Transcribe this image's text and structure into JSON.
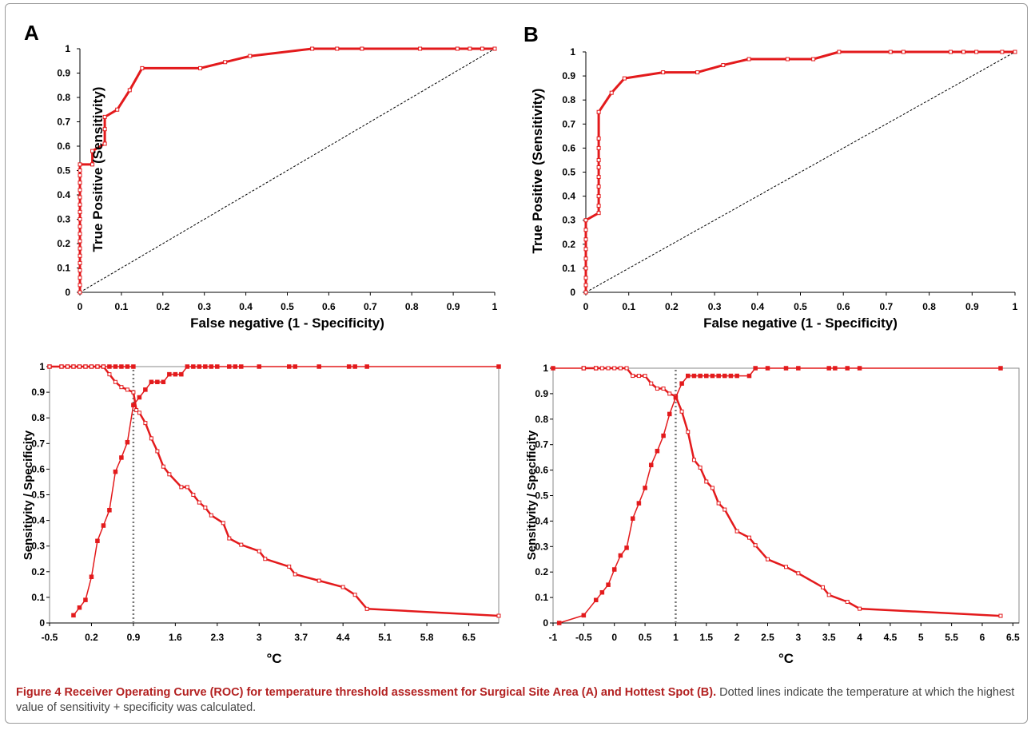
{
  "figure": {
    "caption_label": "Figure 4",
    "caption_title": "Receiver Operating Curve (ROC) for temperature threshold assessment for Surgical Site Area (A) and Hottest Spot (B).",
    "caption_text": "Dotted lines indicate the temperature at which the highest value of sensitivity + specificity was calculated."
  },
  "colors": {
    "curve": "#e31a1c",
    "text": "#000000",
    "caption_bold": "#b32121"
  },
  "chart_data": [
    {
      "id": "roc-a",
      "panel_label": "A",
      "type": "line",
      "xlabel": "False negative (1 - Specificity)",
      "ylabel": "True Positive (Sensitivity)",
      "xlim": [
        0,
        1
      ],
      "ylim": [
        0,
        1
      ],
      "xticks": [
        "0",
        "0.1",
        "0.2",
        "0.3",
        "0.4",
        "0.5",
        "0.6",
        "0.7",
        "0.8",
        "0.9",
        "1"
      ],
      "yticks": [
        "0",
        "0.1",
        "0.2",
        "0.3",
        "0.4",
        "0.5",
        "0.6",
        "0.7",
        "0.8",
        "0.9",
        "1"
      ],
      "diagonal": true,
      "series": [
        {
          "marker": "open",
          "points": [
            [
              0,
              0
            ],
            [
              0,
              0.03
            ],
            [
              0,
              0.06
            ],
            [
              0,
              0.09
            ],
            [
              0,
              0.12
            ],
            [
              0,
              0.15
            ],
            [
              0,
              0.18
            ],
            [
              0,
              0.21
            ],
            [
              0,
              0.24
            ],
            [
              0,
              0.27
            ],
            [
              0,
              0.3
            ],
            [
              0,
              0.33
            ],
            [
              0,
              0.36
            ],
            [
              0,
              0.39
            ],
            [
              0,
              0.42
            ],
            [
              0,
              0.45
            ],
            [
              0,
              0.48
            ],
            [
              0,
              0.5
            ],
            [
              0,
              0.525
            ],
            [
              0.03,
              0.525
            ],
            [
              0.03,
              0.58
            ],
            [
              0.06,
              0.61
            ],
            [
              0.06,
              0.67
            ],
            [
              0.06,
              0.72
            ],
            [
              0.09,
              0.75
            ],
            [
              0.12,
              0.83
            ],
            [
              0.15,
              0.92
            ],
            [
              0.29,
              0.92
            ],
            [
              0.35,
              0.945
            ],
            [
              0.41,
              0.97
            ],
            [
              0.56,
              1
            ],
            [
              0.62,
              1
            ],
            [
              0.68,
              1
            ],
            [
              0.82,
              1
            ],
            [
              0.91,
              1
            ],
            [
              0.94,
              1
            ],
            [
              0.97,
              1
            ],
            [
              1,
              1
            ]
          ]
        }
      ]
    },
    {
      "id": "roc-b",
      "panel_label": "B",
      "type": "line",
      "xlabel": "False negative (1 - Specificity)",
      "ylabel": "True Positive (Sensitivity)",
      "xlim": [
        0,
        1
      ],
      "ylim": [
        0,
        1
      ],
      "xticks": [
        "0",
        "0.1",
        "0.2",
        "0.3",
        "0.4",
        "0.5",
        "0.6",
        "0.7",
        "0.8",
        "0.9",
        "1"
      ],
      "yticks": [
        "0",
        "0.1",
        "0.2",
        "0.3",
        "0.4",
        "0.5",
        "0.6",
        "0.7",
        "0.8",
        "0.9",
        "1"
      ],
      "diagonal": true,
      "series": [
        {
          "marker": "open",
          "points": [
            [
              0,
              0
            ],
            [
              0,
              0.03
            ],
            [
              0,
              0.06
            ],
            [
              0,
              0.1
            ],
            [
              0,
              0.14
            ],
            [
              0,
              0.18
            ],
            [
              0,
              0.22
            ],
            [
              0,
              0.26
            ],
            [
              0,
              0.3
            ],
            [
              0.03,
              0.33
            ],
            [
              0.03,
              0.36
            ],
            [
              0.03,
              0.4
            ],
            [
              0.03,
              0.44
            ],
            [
              0.03,
              0.48
            ],
            [
              0.03,
              0.52
            ],
            [
              0.03,
              0.55
            ],
            [
              0.03,
              0.6
            ],
            [
              0.03,
              0.64
            ],
            [
              0.03,
              0.75
            ],
            [
              0.06,
              0.83
            ],
            [
              0.09,
              0.89
            ],
            [
              0.18,
              0.915
            ],
            [
              0.26,
              0.915
            ],
            [
              0.32,
              0.945
            ],
            [
              0.38,
              0.97
            ],
            [
              0.47,
              0.97
            ],
            [
              0.53,
              0.97
            ],
            [
              0.59,
              1
            ],
            [
              0.71,
              1
            ],
            [
              0.74,
              1
            ],
            [
              0.85,
              1
            ],
            [
              0.88,
              1
            ],
            [
              0.91,
              1
            ],
            [
              0.97,
              1
            ],
            [
              1,
              1
            ]
          ]
        }
      ]
    },
    {
      "id": "senspec-a",
      "type": "line",
      "xlabel": "°C",
      "ylabel": "Sensitivity / Specificity",
      "xlim": [
        -0.5,
        7.0
      ],
      "ylim": [
        0,
        1
      ],
      "xticks": [
        "-0.5",
        "0.2",
        "0.9",
        "1.6",
        "2.3",
        "3",
        "3.7",
        "4.4",
        "5.1",
        "5.8",
        "6.5"
      ],
      "xtick_values": [
        -0.5,
        0.2,
        0.9,
        1.6,
        2.3,
        3.0,
        3.7,
        4.4,
        5.1,
        5.8,
        6.5
      ],
      "yticks": [
        "0",
        "0.1",
        "0.2",
        "0.3",
        "0.4",
        "0.5",
        "0.6",
        "0.7",
        "0.8",
        "0.9",
        "1"
      ],
      "threshold": 0.9,
      "series": [
        {
          "marker": "filled",
          "points": [
            [
              -0.5,
              1
            ],
            [
              -0.3,
              1
            ],
            [
              -0.2,
              1
            ],
            [
              -0.1,
              1
            ],
            [
              0,
              1
            ],
            [
              0.1,
              1
            ],
            [
              0.2,
              1
            ],
            [
              0.3,
              1
            ],
            [
              0.4,
              1
            ],
            [
              0.5,
              1
            ],
            [
              0.6,
              1
            ],
            [
              0.7,
              1
            ],
            [
              0.8,
              1
            ],
            [
              0.9,
              1
            ]
          ]
        },
        {
          "marker": "open",
          "points": [
            [
              -0.5,
              1
            ],
            [
              -0.3,
              1
            ],
            [
              -0.2,
              1
            ],
            [
              -0.1,
              1
            ],
            [
              0,
              1
            ],
            [
              0.1,
              1
            ],
            [
              0.2,
              1
            ],
            [
              0.3,
              1
            ],
            [
              0.4,
              1
            ],
            [
              0.5,
              0.97
            ],
            [
              0.6,
              0.94
            ],
            [
              0.7,
              0.92
            ],
            [
              0.8,
              0.91
            ],
            [
              0.9,
              0.9
            ],
            [
              0.95,
              0.83
            ],
            [
              1.0,
              0.82
            ],
            [
              1.1,
              0.78
            ],
            [
              1.2,
              0.72
            ],
            [
              1.3,
              0.67
            ],
            [
              1.4,
              0.61
            ],
            [
              1.5,
              0.58
            ],
            [
              1.7,
              0.53
            ],
            [
              1.8,
              0.53
            ],
            [
              1.9,
              0.5
            ],
            [
              2.0,
              0.47
            ],
            [
              2.1,
              0.45
            ],
            [
              2.2,
              0.42
            ],
            [
              2.4,
              0.39
            ],
            [
              2.5,
              0.33
            ],
            [
              2.7,
              0.305
            ],
            [
              3.0,
              0.28
            ],
            [
              3.1,
              0.25
            ],
            [
              3.5,
              0.22
            ],
            [
              3.6,
              0.19
            ],
            [
              4.0,
              0.165
            ],
            [
              4.4,
              0.14
            ],
            [
              4.6,
              0.11
            ],
            [
              4.8,
              0.055
            ],
            [
              7.0,
              0.028
            ]
          ]
        },
        {
          "marker": "filled",
          "points": [
            [
              -0.1,
              0.03
            ],
            [
              0,
              0.06
            ],
            [
              0.1,
              0.09
            ],
            [
              0.2,
              0.18
            ],
            [
              0.3,
              0.32
            ],
            [
              0.4,
              0.38
            ],
            [
              0.5,
              0.44
            ],
            [
              0.6,
              0.59
            ],
            [
              0.7,
              0.645
            ],
            [
              0.8,
              0.705
            ],
            [
              0.9,
              0.85
            ],
            [
              1.0,
              0.88
            ],
            [
              1.1,
              0.91
            ],
            [
              1.2,
              0.94
            ],
            [
              1.3,
              0.94
            ],
            [
              1.4,
              0.94
            ],
            [
              1.5,
              0.97
            ],
            [
              1.6,
              0.97
            ],
            [
              1.7,
              0.97
            ],
            [
              1.8,
              1
            ],
            [
              1.9,
              1
            ],
            [
              2.0,
              1
            ],
            [
              2.1,
              1
            ],
            [
              2.2,
              1
            ],
            [
              2.3,
              1
            ],
            [
              2.5,
              1
            ],
            [
              2.6,
              1
            ],
            [
              2.7,
              1
            ],
            [
              3.0,
              1
            ],
            [
              3.5,
              1
            ],
            [
              3.6,
              1
            ],
            [
              4.0,
              1
            ],
            [
              4.5,
              1
            ],
            [
              4.6,
              1
            ],
            [
              4.8,
              1
            ],
            [
              7.0,
              1
            ]
          ]
        }
      ]
    },
    {
      "id": "senspec-b",
      "type": "line",
      "xlabel": "°C",
      "ylabel": "Sensitivity / Specificity",
      "xlim": [
        -1.0,
        6.6
      ],
      "ylim": [
        0,
        1
      ],
      "xticks": [
        "-1",
        "-0.5",
        "0",
        "0.5",
        "1",
        "1.5",
        "2",
        "2.5",
        "3",
        "3.5",
        "4",
        "4.5",
        "5",
        "5.5",
        "6",
        "6.5"
      ],
      "xtick_values": [
        -1,
        -0.5,
        0,
        0.5,
        1,
        1.5,
        2,
        2.5,
        3,
        3.5,
        4,
        4.5,
        5,
        5.5,
        6,
        6.5
      ],
      "yticks": [
        "0",
        "0.1",
        "0.2",
        "0.3",
        "0.4",
        "0.5",
        "0.6",
        "0.7",
        "0.8",
        "0.9",
        "1"
      ],
      "threshold": 1.0,
      "series": [
        {
          "marker": "filled",
          "points": [
            [
              -1.0,
              1
            ],
            [
              -0.5,
              1
            ],
            [
              -0.3,
              1
            ]
          ]
        },
        {
          "marker": "open",
          "points": [
            [
              -0.5,
              1
            ],
            [
              -0.3,
              1
            ],
            [
              -0.2,
              1
            ],
            [
              -0.1,
              1
            ],
            [
              0,
              1
            ],
            [
              0.1,
              1
            ],
            [
              0.2,
              1
            ],
            [
              0.3,
              0.97
            ],
            [
              0.4,
              0.97
            ],
            [
              0.5,
              0.97
            ],
            [
              0.6,
              0.94
            ],
            [
              0.7,
              0.92
            ],
            [
              0.8,
              0.92
            ],
            [
              0.9,
              0.9
            ],
            [
              1.0,
              0.89
            ],
            [
              1.1,
              0.83
            ],
            [
              1.2,
              0.75
            ],
            [
              1.3,
              0.64
            ],
            [
              1.4,
              0.61
            ],
            [
              1.5,
              0.555
            ],
            [
              1.6,
              0.53
            ],
            [
              1.7,
              0.47
            ],
            [
              1.8,
              0.445
            ],
            [
              2.0,
              0.36
            ],
            [
              2.2,
              0.335
            ],
            [
              2.3,
              0.305
            ],
            [
              2.5,
              0.25
            ],
            [
              2.8,
              0.22
            ],
            [
              3.0,
              0.195
            ],
            [
              3.4,
              0.14
            ],
            [
              3.5,
              0.11
            ],
            [
              3.8,
              0.083
            ],
            [
              4.0,
              0.056
            ],
            [
              6.3,
              0.028
            ]
          ]
        },
        {
          "marker": "filled",
          "points": [
            [
              -0.9,
              0
            ],
            [
              -0.5,
              0.03
            ],
            [
              -0.3,
              0.09
            ],
            [
              -0.2,
              0.12
            ],
            [
              -0.1,
              0.15
            ],
            [
              0,
              0.21
            ],
            [
              0.1,
              0.265
            ],
            [
              0.2,
              0.295
            ],
            [
              0.3,
              0.41
            ],
            [
              0.4,
              0.47
            ],
            [
              0.5,
              0.53
            ],
            [
              0.6,
              0.62
            ],
            [
              0.7,
              0.675
            ],
            [
              0.8,
              0.735
            ],
            [
              0.9,
              0.82
            ],
            [
              1.0,
              0.885
            ],
            [
              1.1,
              0.94
            ],
            [
              1.2,
              0.97
            ],
            [
              1.3,
              0.97
            ],
            [
              1.4,
              0.97
            ],
            [
              1.5,
              0.97
            ],
            [
              1.6,
              0.97
            ],
            [
              1.7,
              0.97
            ],
            [
              1.8,
              0.97
            ],
            [
              1.9,
              0.97
            ],
            [
              2.0,
              0.97
            ],
            [
              2.2,
              0.97
            ],
            [
              2.3,
              1
            ],
            [
              2.5,
              1
            ],
            [
              2.8,
              1
            ],
            [
              3.0,
              1
            ],
            [
              3.5,
              1
            ],
            [
              3.6,
              1
            ],
            [
              3.8,
              1
            ],
            [
              4.0,
              1
            ],
            [
              6.3,
              1
            ]
          ]
        }
      ]
    }
  ]
}
